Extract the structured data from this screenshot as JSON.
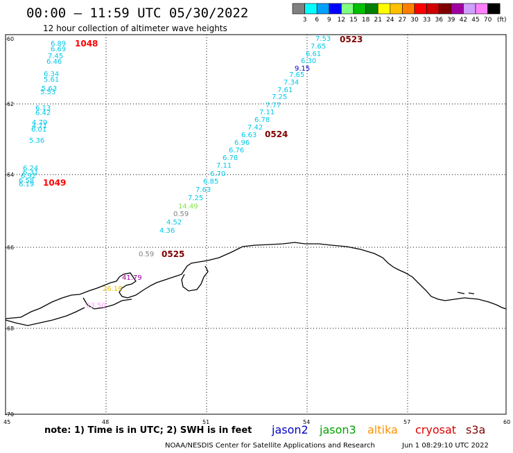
{
  "header": {
    "title": "00:00 – 11:59 UTC 05/30/2022",
    "subtitle": "12 hour collection of altimeter wave heights"
  },
  "legend": {
    "unit": "(ft)",
    "swatches": [
      {
        "label": "3",
        "color": "#808080"
      },
      {
        "label": "6",
        "color": "#00ffff"
      },
      {
        "label": "9",
        "color": "#00a0ff"
      },
      {
        "label": "12",
        "color": "#0000ff"
      },
      {
        "label": "15",
        "color": "#80ff80"
      },
      {
        "label": "18",
        "color": "#00c000"
      },
      {
        "label": "21",
        "color": "#008000"
      },
      {
        "label": "24",
        "color": "#ffff00"
      },
      {
        "label": "27",
        "color": "#ffc000"
      },
      {
        "label": "30",
        "color": "#ff8000"
      },
      {
        "label": "33",
        "color": "#ff0000"
      },
      {
        "label": "36",
        "color": "#d00000"
      },
      {
        "label": "39",
        "color": "#800000"
      },
      {
        "label": "42",
        "color": "#a000a0"
      },
      {
        "label": "45",
        "color": "#d0a0ff"
      },
      {
        "label": "70",
        "color": "#ff80ff"
      },
      {
        "label": "",
        "color": "#000000"
      }
    ]
  },
  "map": {
    "lon_range": [
      45,
      60
    ],
    "lat_range": [
      -70,
      -60
    ],
    "lon_ticks": [
      "45",
      "48",
      "51",
      "54",
      "57",
      "60"
    ],
    "lat_ticks": [
      "-60",
      "-62",
      "-64",
      "-66",
      "-68",
      "-70"
    ]
  },
  "time_labels": [
    {
      "text": "1048",
      "color": "#ff0000"
    },
    {
      "text": "1049",
      "color": "#ff0000"
    },
    {
      "text": "0523",
      "color": "#800000"
    },
    {
      "text": "0524",
      "color": "#800000"
    },
    {
      "text": "0525",
      "color": "#800000"
    }
  ],
  "wave_heights": [
    {
      "value": "6.89",
      "color": "#00c8e8"
    },
    {
      "value": "6.69",
      "color": "#00c8e8"
    },
    {
      "value": "7.45",
      "color": "#00c8e8"
    },
    {
      "value": "6.46",
      "color": "#00c8e8"
    },
    {
      "value": "6.34",
      "color": "#00c8e8"
    },
    {
      "value": "5.61",
      "color": "#00c8e8"
    },
    {
      "value": "5.63",
      "color": "#00c8e8"
    },
    {
      "value": "5.53",
      "color": "#00c8e8"
    },
    {
      "value": "6.13",
      "color": "#00c8e8"
    },
    {
      "value": "6.42",
      "color": "#00c8e8"
    },
    {
      "value": "4.79",
      "color": "#00c8e8"
    },
    {
      "value": "4.71",
      "color": "#00c8e8"
    },
    {
      "value": "6.01",
      "color": "#00c8e8"
    },
    {
      "value": "5.36",
      "color": "#00c8e8"
    },
    {
      "value": "6.24",
      "color": "#00c8e8"
    },
    {
      "value": "6.31",
      "color": "#00c8e8"
    },
    {
      "value": "6.92",
      "color": "#00c8e8"
    },
    {
      "value": "6.58",
      "color": "#00c8e8"
    },
    {
      "value": "6.19",
      "color": "#00c8e8"
    },
    {
      "value": "7.53",
      "color": "#00c8e8"
    },
    {
      "value": "7.65",
      "color": "#00c8e8"
    },
    {
      "value": "6.61",
      "color": "#00c8e8"
    },
    {
      "value": "6.30",
      "color": "#00c8e8"
    },
    {
      "value": "9.15",
      "color": "#0000c8"
    },
    {
      "value": "7.65",
      "color": "#00c8e8"
    },
    {
      "value": "7.34",
      "color": "#00c8e8"
    },
    {
      "value": "7.61",
      "color": "#00c8e8"
    },
    {
      "value": "7.25",
      "color": "#00c8e8"
    },
    {
      "value": "7.77",
      "color": "#00c8e8"
    },
    {
      "value": "7.11",
      "color": "#00c8e8"
    },
    {
      "value": "6.78",
      "color": "#00c8e8"
    },
    {
      "value": "7.42",
      "color": "#00c8e8"
    },
    {
      "value": "6.63",
      "color": "#00c8e8"
    },
    {
      "value": "6.96",
      "color": "#00c8e8"
    },
    {
      "value": "6.76",
      "color": "#00c8e8"
    },
    {
      "value": "6.78",
      "color": "#00c8e8"
    },
    {
      "value": "7.11",
      "color": "#00c8e8"
    },
    {
      "value": "6.70",
      "color": "#00c8e8"
    },
    {
      "value": "6.85",
      "color": "#00c8e8"
    },
    {
      "value": "7.63",
      "color": "#00c8e8"
    },
    {
      "value": "7.25",
      "color": "#00c8e8"
    },
    {
      "value": "14.49",
      "color": "#80e840"
    },
    {
      "value": "0.59",
      "color": "#808080"
    },
    {
      "value": "4.52",
      "color": "#00c8e8"
    },
    {
      "value": "4.36",
      "color": "#00c8e8"
    },
    {
      "value": "0.59",
      "color": "#808080"
    },
    {
      "value": "41.79",
      "color": "#a000a0"
    },
    {
      "value": "26.18",
      "color": "#e8c000"
    },
    {
      "value": "23.50",
      "color": "#ffa0ff"
    }
  ],
  "footer": {
    "note": "note: 1) Time is in UTC; 2) SWH is in feet",
    "satellites": [
      {
        "name": "jason2",
        "color": "#0000c8"
      },
      {
        "name": "jason3",
        "color": "#00a000"
      },
      {
        "name": "altika",
        "color": "#ff9000"
      },
      {
        "name": "cryosat",
        "color": "#e00000"
      },
      {
        "name": "s3a",
        "color": "#800000"
      }
    ],
    "credit": "NOAA/NESDIS Center for Satellite Applications and Research",
    "timestamp": "Jun  1 08:29:10 UTC 2022"
  }
}
